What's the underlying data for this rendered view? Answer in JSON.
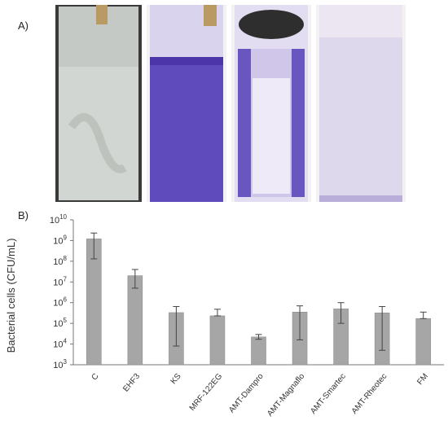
{
  "panels": {
    "a_label": "A)",
    "b_label": "B)"
  },
  "photos": [
    {
      "name": "control-slide",
      "bg": "#d2d6d2",
      "stain": "#b9bdb8"
    },
    {
      "name": "crystal-violet-slide",
      "bg": "#6e5bc4",
      "stain": "#4b35a8"
    },
    {
      "name": "partially-stained-slide",
      "bg": "#e2ddf0",
      "stain": "#6a56bf"
    },
    {
      "name": "faint-stained-slide",
      "bg": "#ebe6f2",
      "stain": "#d9d2ea"
    }
  ],
  "chart_data": {
    "type": "bar",
    "ylabel": "Bacterial cells (CFU/mL)",
    "yscale": "log",
    "ylim_exp": [
      3,
      10
    ],
    "ytick_exponents": [
      3,
      4,
      5,
      6,
      7,
      8,
      9,
      10
    ],
    "categories": [
      "C",
      "EHF3",
      "KS",
      "MRF-122EG",
      "AMT-Dampro",
      "AMT-Magnaflo",
      "AMT-Smartec",
      "AMT-Rheotec",
      "FM"
    ],
    "values": [
      1200000000.0,
      20000000.0,
      330000.0,
      230000.0,
      22000.0,
      350000.0,
      500000.0,
      320000.0,
      170000.0
    ],
    "error_high": [
      2300000000.0,
      40000000.0,
      650000.0,
      480000.0,
      29000.0,
      700000.0,
      1000000.0,
      650000.0,
      350000.0
    ],
    "error_low": [
      130000000.0,
      5000000.0,
      8000.0,
      230000.0,
      17000.0,
      16000.0,
      100000.0,
      5000.0,
      170000.0
    ],
    "bar_color": "#a6a6a6",
    "grid": false
  }
}
